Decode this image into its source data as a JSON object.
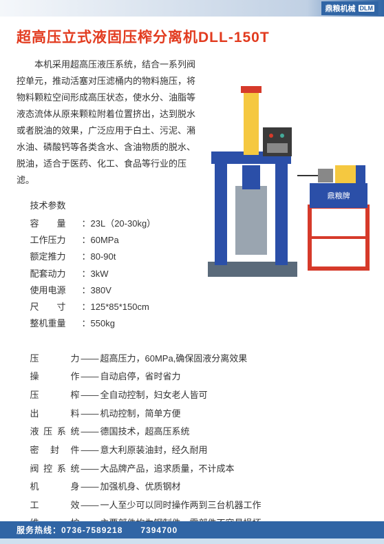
{
  "brand": {
    "name": "鼎粮机械",
    "sub": "DLM"
  },
  "title": "超高压立式液固压榨分离机DLL-150T",
  "intro": "本机采用超高压液压系统，结合一系列阀控单元，推动活塞对压滤桶内的物料施压，将物料颗粒空间形成高压状态，使水分、油脂等液态流体从原来颗粒附着位置挤出，达到脱水或者脱油的效果，广泛应用于白土、污泥、潲水油、磷酸钙等各类含水、含油物质的脱水、脱油，适合于医药、化工、食品等行业的压滤。",
  "specsTitle": "技术参数",
  "specs": [
    {
      "label": "容　　量",
      "value": "：23L（20-30kg）"
    },
    {
      "label": "工作压力",
      "value": "：60MPa"
    },
    {
      "label": "额定推力",
      "value": "：80-90t"
    },
    {
      "label": "配套动力",
      "value": "：3kW"
    },
    {
      "label": "使用电源",
      "value": "：380V"
    },
    {
      "label": "尺　　寸",
      "value": "：125*85*150cm"
    },
    {
      "label": "整机重量",
      "value": "：550kg"
    }
  ],
  "features": [
    {
      "label": "压　　力",
      "desc": "超高压力，60MPa,确保固液分离效果"
    },
    {
      "label": "操　　作",
      "desc": "自动启停，省时省力"
    },
    {
      "label": "压　　榨",
      "desc": "全自动控制，妇女老人皆可"
    },
    {
      "label": "出　　料",
      "desc": "机动控制，简单方便"
    },
    {
      "label": "液压系统",
      "desc": "德国技术，超高压系统"
    },
    {
      "label": "密 封 件",
      "desc": "意大利原装油封，经久耐用"
    },
    {
      "label": "阀控系统",
      "desc": "大品牌产品，追求质量，不计成本"
    },
    {
      "label": "机　　身",
      "desc": "加强机身、优质钢材"
    },
    {
      "label": "工　　效",
      "desc": "一人至少可以同时操作两到三台机器工作"
    },
    {
      "label": "维　　护",
      "desc": "主要部件均为钢制件，零部件不容易损坏"
    }
  ],
  "footer": {
    "hotline": "服务热线：0736-7589218　　7394700"
  },
  "colors": {
    "primaryBlue": "#3065a5",
    "titleRed": "#e23b1f",
    "lightBlue": "#cfe0ef",
    "machineBlue": "#2b4fa8",
    "machineYellow": "#f5c840",
    "standRed": "#d63a2a"
  }
}
